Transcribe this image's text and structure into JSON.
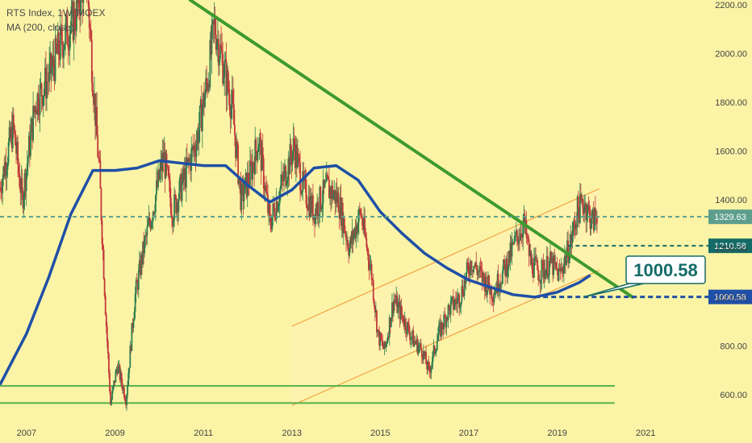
{
  "legend": {
    "title": "RTS Index, 1W, MOEX",
    "indicator": "MA (200, close)"
  },
  "colors": {
    "background": "#fbf4a6",
    "candle_up": "#2e7d4f",
    "candle_down": "#c2393b",
    "ma": "#1f4fa6",
    "trendline": "#3f9a2e",
    "support": "#55b04a",
    "channel_line": "#f2a444",
    "channel_fill": "#fff3b0",
    "tag_1329": "#5e9e8c",
    "tag_1210": "#146b67",
    "tag_1000": "#1f4fa6",
    "callout_border": "#146b67",
    "axis_text": "#444444"
  },
  "chart_data": {
    "type": "candlestick",
    "title": "RTS Index, 1W, MOEX",
    "indicator": "MA (200, close)",
    "xlim": [
      2006.4,
      2022.2
    ],
    "ylim": [
      500,
      2220
    ],
    "x_ticks": [
      {
        "label": "2007",
        "value": 2007
      },
      {
        "label": "2009",
        "value": 2009
      },
      {
        "label": "2011",
        "value": 2011
      },
      {
        "label": "2013",
        "value": 2013
      },
      {
        "label": "2015",
        "value": 2015
      },
      {
        "label": "2017",
        "value": 2017
      },
      {
        "label": "2019",
        "value": 2019
      },
      {
        "label": "2021",
        "value": 2021
      }
    ],
    "y_ticks": [
      {
        "label": "600.00",
        "value": 600
      },
      {
        "label": "800.00",
        "value": 800
      },
      {
        "label": "1000.00",
        "value": 1000
      },
      {
        "label": "1200.00",
        "value": 1200
      },
      {
        "label": "1400.00",
        "value": 1400
      },
      {
        "label": "1600.00",
        "value": 1600
      },
      {
        "label": "1800.00",
        "value": 1800
      },
      {
        "label": "2000.00",
        "value": 2000
      },
      {
        "label": "2200.00",
        "value": 2200
      }
    ],
    "price_path": [
      [
        2006.4,
        1450
      ],
      [
        2006.7,
        1700
      ],
      [
        2006.9,
        1400
      ],
      [
        2007.2,
        1800
      ],
      [
        2007.5,
        1900
      ],
      [
        2007.8,
        2050
      ],
      [
        2008.1,
        2150
      ],
      [
        2008.35,
        2350
      ],
      [
        2008.5,
        1900
      ],
      [
        2008.65,
        1500
      ],
      [
        2008.8,
        900
      ],
      [
        2008.9,
        560
      ],
      [
        2009.05,
        720
      ],
      [
        2009.25,
        580
      ],
      [
        2009.45,
        1000
      ],
      [
        2009.65,
        1200
      ],
      [
        2009.9,
        1400
      ],
      [
        2010.1,
        1580
      ],
      [
        2010.3,
        1350
      ],
      [
        2010.55,
        1480
      ],
      [
        2010.85,
        1650
      ],
      [
        2011.1,
        1900
      ],
      [
        2011.25,
        2120
      ],
      [
        2011.45,
        1950
      ],
      [
        2011.65,
        1780
      ],
      [
        2011.85,
        1400
      ],
      [
        2012.05,
        1500
      ],
      [
        2012.25,
        1650
      ],
      [
        2012.5,
        1300
      ],
      [
        2012.75,
        1450
      ],
      [
        2013.05,
        1620
      ],
      [
        2013.25,
        1450
      ],
      [
        2013.5,
        1350
      ],
      [
        2013.8,
        1450
      ],
      [
        2014.05,
        1400
      ],
      [
        2014.3,
        1200
      ],
      [
        2014.55,
        1350
      ],
      [
        2014.8,
        1100
      ],
      [
        2014.95,
        840
      ],
      [
        2015.1,
        780
      ],
      [
        2015.3,
        990
      ],
      [
        2015.5,
        920
      ],
      [
        2015.75,
        820
      ],
      [
        2015.95,
        780
      ],
      [
        2016.1,
        690
      ],
      [
        2016.3,
        840
      ],
      [
        2016.55,
        950
      ],
      [
        2016.8,
        1000
      ],
      [
        2017.05,
        1150
      ],
      [
        2017.3,
        1080
      ],
      [
        2017.55,
        1020
      ],
      [
        2017.85,
        1130
      ],
      [
        2018.1,
        1250
      ],
      [
        2018.25,
        1300
      ],
      [
        2018.4,
        1140
      ],
      [
        2018.6,
        1100
      ],
      [
        2018.85,
        1140
      ],
      [
        2019.05,
        1090
      ],
      [
        2019.3,
        1220
      ],
      [
        2019.45,
        1350
      ],
      [
        2019.6,
        1390
      ],
      [
        2019.8,
        1310
      ],
      [
        2019.9,
        1340
      ]
    ],
    "moving_average": [
      [
        2006.4,
        640
      ],
      [
        2007.0,
        850
      ],
      [
        2007.5,
        1080
      ],
      [
        2008.0,
        1340
      ],
      [
        2008.5,
        1520
      ],
      [
        2009.0,
        1520
      ],
      [
        2009.5,
        1530
      ],
      [
        2010.0,
        1560
      ],
      [
        2010.5,
        1550
      ],
      [
        2011.0,
        1540
      ],
      [
        2011.5,
        1540
      ],
      [
        2012.0,
        1460
      ],
      [
        2012.5,
        1390
      ],
      [
        2013.0,
        1440
      ],
      [
        2013.5,
        1530
      ],
      [
        2014.0,
        1540
      ],
      [
        2014.5,
        1480
      ],
      [
        2015.0,
        1350
      ],
      [
        2015.5,
        1260
      ],
      [
        2016.0,
        1180
      ],
      [
        2016.5,
        1120
      ],
      [
        2017.0,
        1070
      ],
      [
        2017.5,
        1040
      ],
      [
        2018.0,
        1010
      ],
      [
        2018.5,
        1000
      ],
      [
        2019.0,
        1020
      ],
      [
        2019.5,
        1060
      ],
      [
        2019.75,
        1090
      ]
    ],
    "trendline": {
      "from": [
        2010.7,
        2220
      ],
      "to": [
        2020.7,
        1000
      ]
    },
    "channel": {
      "upper": {
        "from": [
          2013.0,
          880
        ],
        "to": [
          2019.95,
          1445
        ]
      },
      "lower": {
        "from": [
          2013.0,
          555
        ],
        "to": [
          2019.95,
          1110
        ]
      },
      "shade_start": 2013.0,
      "shade_end": 2019.95
    },
    "support_lines": [
      {
        "value": 635,
        "from": 2006.4,
        "to": 2020.3
      },
      {
        "value": 565,
        "from": 2006.4,
        "to": 2020.3
      }
    ],
    "levels": [
      {
        "value": 1329.63,
        "label": "1329.63",
        "style": "dashed",
        "from": 2006.4
      },
      {
        "value": 1210.58,
        "label": "1210.58",
        "style": "dashed",
        "from": 2019.25
      },
      {
        "value": 1000.58,
        "label": "1000.58",
        "style": "dashed-thick",
        "from": 2018.5
      }
    ],
    "callout": {
      "label": "1000.58",
      "x": 2019.6,
      "value": 1000.58
    }
  }
}
